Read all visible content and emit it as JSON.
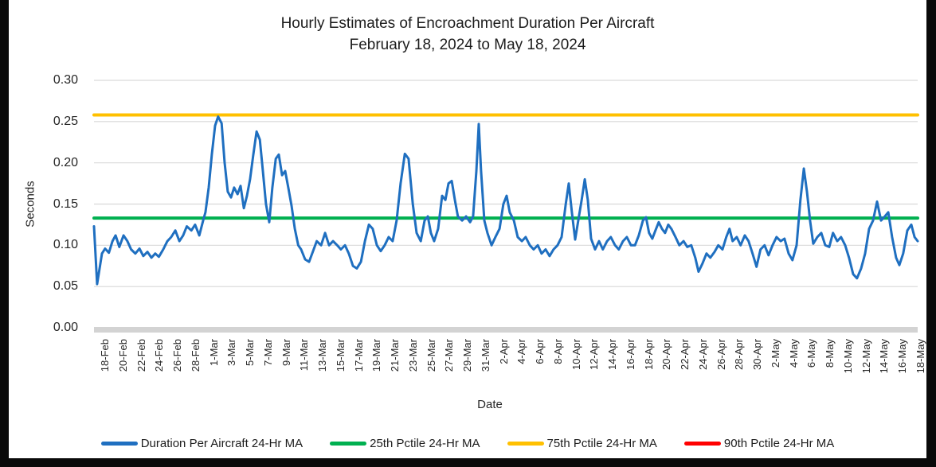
{
  "title": "Hourly Estimates of Encroachment Duration Per Aircraft",
  "subtitle": "February 18, 2024 to May 18, 2024",
  "chart_data": {
    "type": "line",
    "title": "Hourly Estimates of Encroachment Duration Per Aircraft",
    "subtitle": "February 18, 2024 to May 18, 2024",
    "xlabel": "Date",
    "ylabel": "Seconds",
    "ylim": [
      0,
      0.3
    ],
    "ytick_step": 0.05,
    "yticks": [
      "0.00",
      "0.05",
      "0.10",
      "0.15",
      "0.20",
      "0.25",
      "0.30"
    ],
    "grid": true,
    "legend_position": "bottom",
    "gridline_color": "#D9D9D9",
    "zero_axis_color": "#D3D3D3",
    "categories": [
      "18-Feb",
      "20-Feb",
      "22-Feb",
      "24-Feb",
      "26-Feb",
      "28-Feb",
      "1-Mar",
      "3-Mar",
      "5-Mar",
      "7-Mar",
      "9-Mar",
      "11-Mar",
      "13-Mar",
      "15-Mar",
      "17-Mar",
      "19-Mar",
      "21-Mar",
      "23-Mar",
      "25-Mar",
      "27-Mar",
      "29-Mar",
      "31-Mar",
      "2-Apr",
      "4-Apr",
      "6-Apr",
      "8-Apr",
      "10-Apr",
      "12-Apr",
      "14-Apr",
      "16-Apr",
      "18-Apr",
      "20-Apr",
      "22-Apr",
      "24-Apr",
      "26-Apr",
      "28-Apr",
      "30-Apr",
      "2-May",
      "4-May",
      "6-May",
      "8-May",
      "10-May",
      "12-May",
      "14-May",
      "16-May",
      "18-May"
    ],
    "series": [
      {
        "name": "Duration Per Aircraft 24-Hr MA",
        "color": "#1F6FC0",
        "width": 3,
        "points": [
          [
            0,
            0.123
          ],
          [
            0.17,
            0.053
          ],
          [
            0.44,
            0.09
          ],
          [
            0.61,
            0.096
          ],
          [
            0.82,
            0.091
          ],
          [
            1.02,
            0.105
          ],
          [
            1.19,
            0.112
          ],
          [
            1.4,
            0.098
          ],
          [
            1.63,
            0.112
          ],
          [
            1.84,
            0.105
          ],
          [
            2.05,
            0.095
          ],
          [
            2.28,
            0.09
          ],
          [
            2.51,
            0.096
          ],
          [
            2.72,
            0.087
          ],
          [
            2.95,
            0.092
          ],
          [
            3.17,
            0.085
          ],
          [
            3.38,
            0.09
          ],
          [
            3.58,
            0.086
          ],
          [
            3.82,
            0.095
          ],
          [
            4.05,
            0.105
          ],
          [
            4.26,
            0.11
          ],
          [
            4.49,
            0.118
          ],
          [
            4.71,
            0.105
          ],
          [
            4.92,
            0.112
          ],
          [
            5.12,
            0.123
          ],
          [
            5.37,
            0.118
          ],
          [
            5.58,
            0.125
          ],
          [
            5.81,
            0.112
          ],
          [
            6.02,
            0.13
          ],
          [
            6.15,
            0.14
          ],
          [
            6.33,
            0.17
          ],
          [
            6.5,
            0.21
          ],
          [
            6.68,
            0.245
          ],
          [
            6.85,
            0.256
          ],
          [
            7.04,
            0.248
          ],
          [
            7.21,
            0.2
          ],
          [
            7.38,
            0.165
          ],
          [
            7.56,
            0.158
          ],
          [
            7.73,
            0.17
          ],
          [
            7.92,
            0.162
          ],
          [
            8.09,
            0.172
          ],
          [
            8.27,
            0.145
          ],
          [
            8.44,
            0.16
          ],
          [
            8.61,
            0.18
          ],
          [
            8.79,
            0.21
          ],
          [
            8.97,
            0.238
          ],
          [
            9.15,
            0.228
          ],
          [
            9.32,
            0.19
          ],
          [
            9.49,
            0.15
          ],
          [
            9.67,
            0.128
          ],
          [
            9.84,
            0.17
          ],
          [
            10.03,
            0.205
          ],
          [
            10.2,
            0.21
          ],
          [
            10.38,
            0.185
          ],
          [
            10.55,
            0.19
          ],
          [
            10.72,
            0.17
          ],
          [
            10.9,
            0.148
          ],
          [
            11.08,
            0.12
          ],
          [
            11.27,
            0.1
          ],
          [
            11.43,
            0.095
          ],
          [
            11.65,
            0.083
          ],
          [
            11.87,
            0.08
          ],
          [
            12.09,
            0.093
          ],
          [
            12.29,
            0.105
          ],
          [
            12.53,
            0.1
          ],
          [
            12.75,
            0.115
          ],
          [
            12.97,
            0.1
          ],
          [
            13.19,
            0.105
          ],
          [
            13.42,
            0.1
          ],
          [
            13.62,
            0.095
          ],
          [
            13.85,
            0.1
          ],
          [
            14.06,
            0.09
          ],
          [
            14.29,
            0.075
          ],
          [
            14.5,
            0.072
          ],
          [
            14.73,
            0.08
          ],
          [
            14.95,
            0.105
          ],
          [
            15.17,
            0.125
          ],
          [
            15.38,
            0.12
          ],
          [
            15.61,
            0.1
          ],
          [
            15.82,
            0.093
          ],
          [
            16.04,
            0.1
          ],
          [
            16.26,
            0.11
          ],
          [
            16.48,
            0.105
          ],
          [
            16.7,
            0.13
          ],
          [
            16.92,
            0.175
          ],
          [
            17.15,
            0.211
          ],
          [
            17.36,
            0.205
          ],
          [
            17.59,
            0.15
          ],
          [
            17.8,
            0.115
          ],
          [
            18.03,
            0.105
          ],
          [
            18.24,
            0.13
          ],
          [
            18.42,
            0.135
          ],
          [
            18.59,
            0.115
          ],
          [
            18.77,
            0.105
          ],
          [
            18.99,
            0.12
          ],
          [
            19.21,
            0.16
          ],
          [
            19.39,
            0.155
          ],
          [
            19.56,
            0.175
          ],
          [
            19.74,
            0.178
          ],
          [
            19.91,
            0.155
          ],
          [
            20.08,
            0.135
          ],
          [
            20.31,
            0.13
          ],
          [
            20.53,
            0.135
          ],
          [
            20.75,
            0.128
          ],
          [
            20.92,
            0.135
          ],
          [
            21.1,
            0.19
          ],
          [
            21.23,
            0.247
          ],
          [
            21.36,
            0.19
          ],
          [
            21.54,
            0.13
          ],
          [
            21.71,
            0.115
          ],
          [
            21.94,
            0.1
          ],
          [
            22.15,
            0.11
          ],
          [
            22.38,
            0.12
          ],
          [
            22.59,
            0.15
          ],
          [
            22.77,
            0.16
          ],
          [
            22.94,
            0.14
          ],
          [
            23.17,
            0.13
          ],
          [
            23.38,
            0.11
          ],
          [
            23.61,
            0.105
          ],
          [
            23.82,
            0.11
          ],
          [
            24.05,
            0.1
          ],
          [
            24.26,
            0.095
          ],
          [
            24.49,
            0.1
          ],
          [
            24.7,
            0.09
          ],
          [
            24.92,
            0.095
          ],
          [
            25.14,
            0.087
          ],
          [
            25.36,
            0.095
          ],
          [
            25.58,
            0.1
          ],
          [
            25.8,
            0.11
          ],
          [
            26.03,
            0.15
          ],
          [
            26.2,
            0.175
          ],
          [
            26.37,
            0.14
          ],
          [
            26.55,
            0.107
          ],
          [
            26.72,
            0.13
          ],
          [
            26.91,
            0.155
          ],
          [
            27.08,
            0.18
          ],
          [
            27.25,
            0.155
          ],
          [
            27.43,
            0.108
          ],
          [
            27.65,
            0.095
          ],
          [
            27.87,
            0.105
          ],
          [
            28.08,
            0.095
          ],
          [
            28.31,
            0.105
          ],
          [
            28.52,
            0.11
          ],
          [
            28.75,
            0.1
          ],
          [
            28.96,
            0.095
          ],
          [
            29.19,
            0.105
          ],
          [
            29.4,
            0.11
          ],
          [
            29.63,
            0.1
          ],
          [
            29.85,
            0.1
          ],
          [
            30.06,
            0.112
          ],
          [
            30.29,
            0.13
          ],
          [
            30.46,
            0.134
          ],
          [
            30.63,
            0.115
          ],
          [
            30.81,
            0.108
          ],
          [
            30.98,
            0.118
          ],
          [
            31.16,
            0.128
          ],
          [
            31.34,
            0.12
          ],
          [
            31.51,
            0.115
          ],
          [
            31.69,
            0.125
          ],
          [
            31.86,
            0.12
          ],
          [
            32.09,
            0.11
          ],
          [
            32.3,
            0.1
          ],
          [
            32.53,
            0.105
          ],
          [
            32.74,
            0.098
          ],
          [
            32.96,
            0.1
          ],
          [
            33.18,
            0.085
          ],
          [
            33.36,
            0.068
          ],
          [
            33.58,
            0.078
          ],
          [
            33.8,
            0.09
          ],
          [
            34.01,
            0.085
          ],
          [
            34.24,
            0.092
          ],
          [
            34.45,
            0.1
          ],
          [
            34.68,
            0.095
          ],
          [
            34.89,
            0.11
          ],
          [
            35.07,
            0.12
          ],
          [
            35.24,
            0.105
          ],
          [
            35.47,
            0.11
          ],
          [
            35.68,
            0.1
          ],
          [
            35.91,
            0.112
          ],
          [
            36.12,
            0.105
          ],
          [
            36.34,
            0.09
          ],
          [
            36.56,
            0.074
          ],
          [
            36.78,
            0.095
          ],
          [
            37,
            0.1
          ],
          [
            37.22,
            0.088
          ],
          [
            37.44,
            0.1
          ],
          [
            37.66,
            0.11
          ],
          [
            37.89,
            0.105
          ],
          [
            38.1,
            0.108
          ],
          [
            38.33,
            0.09
          ],
          [
            38.54,
            0.082
          ],
          [
            38.77,
            0.1
          ],
          [
            38.98,
            0.155
          ],
          [
            39.17,
            0.193
          ],
          [
            39.34,
            0.165
          ],
          [
            39.51,
            0.13
          ],
          [
            39.69,
            0.102
          ],
          [
            39.91,
            0.11
          ],
          [
            40.13,
            0.115
          ],
          [
            40.35,
            0.1
          ],
          [
            40.57,
            0.098
          ],
          [
            40.78,
            0.115
          ],
          [
            41.01,
            0.105
          ],
          [
            41.22,
            0.11
          ],
          [
            41.45,
            0.1
          ],
          [
            41.66,
            0.085
          ],
          [
            41.89,
            0.065
          ],
          [
            42.1,
            0.06
          ],
          [
            42.33,
            0.072
          ],
          [
            42.55,
            0.09
          ],
          [
            42.77,
            0.12
          ],
          [
            42.99,
            0.13
          ],
          [
            43.21,
            0.153
          ],
          [
            43.43,
            0.13
          ],
          [
            43.64,
            0.135
          ],
          [
            43.83,
            0.14
          ],
          [
            44.04,
            0.11
          ],
          [
            44.26,
            0.085
          ],
          [
            44.44,
            0.076
          ],
          [
            44.65,
            0.09
          ],
          [
            44.88,
            0.118
          ],
          [
            45.1,
            0.125
          ],
          [
            45.28,
            0.11
          ],
          [
            45.45,
            0.105
          ]
        ]
      },
      {
        "name": "25th Pctile 24-Hr MA",
        "color": "#00B050",
        "width": 4,
        "constant": 0.133
      },
      {
        "name": "75th Pctile 24-Hr MA",
        "color": "#FFC000",
        "width": 4,
        "constant": 0.258
      },
      {
        "name": "90th Pctile 24-Hr MA",
        "color": "#FF0000",
        "width": 4,
        "constant": null
      }
    ]
  }
}
